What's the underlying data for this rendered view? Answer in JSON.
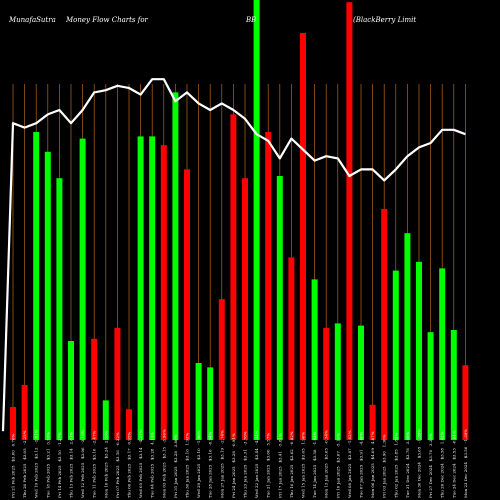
{
  "header": {
    "site": "MunafaSutra",
    "title": "Money Flow  Charts for",
    "symbol": "BB",
    "company": "(BlackBerry Limit"
  },
  "colors": {
    "background": "#000000",
    "up": "#00ff00",
    "down": "#ff0000",
    "line": "#ffffff",
    "grid": "#b5651d"
  },
  "chart_data": {
    "type": "bar",
    "title": "MunafaSutra  Money Flow  Charts for BB (BlackBerry Limit",
    "ylim": [
      0,
      100
    ],
    "grid": true,
    "categories": [
      "Fri 21 Feb 2025   $3.00   0.76%",
      "Thu 20 Feb 2025   $3.05   -2.25%",
      "Wed 19 Feb 2025   $3.12   -2.81%",
      "Tue 18 Feb 2025   $3.21   3.55%",
      "Fri 14 Feb 2025   $3.10   -1.27%",
      "Thu 13 Feb 2025   $3.14   2.61%",
      "Wed 12 Feb 2025   $3.06   -3.16%",
      "Tue 11 Feb 2025   $3.16   -2.47%",
      "Mon 10 Feb 2025   $3.24   2.53%",
      "Fri 07 Feb 2025   $3.16   -0.32%",
      "Thu 06 Feb 2025   $3.17   0.95%",
      "Wed 05 Feb 2025   $3.14   -4.27%",
      "Tue 04 Feb 2025   $3.28   4.13%",
      "Mon 03 Feb 2025   $3.15   -3.96%",
      "Fri 31 Jan 2025   $3.28   3.80%",
      "Thu 30 Jan 2025   $3.16   1.93%",
      "Wed 29 Jan 2025   $3.10   -1.90%",
      "Tue 28 Jan 2025   $3.16   -0.94%",
      "Mon 27 Jan 2025   $3.19   -2.74%",
      "Fri 24 Jan 2025   $3.28   -0.91%",
      "Thu 23 Jan 2025   $3.31   -3.78%",
      "Wed 22 Jan 2025   $3.44   -4.44%",
      "Tue 21 Jan 2025   $3.60   5.57%",
      "Fri 17 Jan 2025   $3.41   -5.81%",
      "Thu 16 Jan 2025   $3.62   -0.82%",
      "Wed 15 Jan 2025   $3.65   1.96%",
      "Tue 14 Jan 2025   $3.58   -1.92%",
      "Mon 13 Jan 2025   $3.65   -0.54%",
      "Fri 10 Jan 2025   $3.67   -5.16%",
      "Wed 08 Jan 2025   $3.87   -1.02%",
      "Tue 07 Jan 2025   $3.91   -4.40%",
      "Mon 06 Jan 2025   $4.09   4.87%",
      "Fri 03 Jan 2025   $3.90   1.30%",
      "Thu 02 Jan 2025   $3.85   1.85%",
      "Tue 31 Dec 2024   $3.78   3.56%",
      "Mon 30 Dec 2024   $3.65   -1.35%",
      "Fri 27 Dec 2024   $3.70   3.35%",
      "Thu 26 Dec 2024   $3.58   1.42%",
      "Tue 24 Dec 2024   $3.53   -0.84%",
      "Mon 23 Dec 2024   $3.56   -1.39%"
    ],
    "series": [
      {
        "values": [
          7.5,
          12.5,
          70.0,
          65.5,
          59.5,
          22.5,
          68.5,
          23.0,
          9.0,
          25.5,
          7.0,
          69.0,
          69.0,
          67.0,
          79.0,
          61.5,
          17.5,
          16.5,
          32.0,
          74.0,
          59.5,
          100.0,
          70.0,
          60.0,
          41.5,
          92.5,
          36.5,
          25.5,
          26.5,
          99.5,
          26.0,
          8.0,
          52.5,
          38.5,
          47.0,
          40.5,
          24.5,
          39.0,
          25.0,
          17.0
        ],
        "directions": [
          "down",
          "down",
          "up",
          "up",
          "up",
          "up",
          "up",
          "down",
          "up",
          "down",
          "down",
          "up",
          "up",
          "down",
          "up",
          "down",
          "up",
          "up",
          "down",
          "down",
          "down",
          "up",
          "down",
          "up",
          "down",
          "down",
          "up",
          "down",
          "up",
          "down",
          "up",
          "down",
          "down",
          "up",
          "up",
          "up",
          "up",
          "up",
          "up",
          "down"
        ]
      },
      {
        "values": [
          72.0,
          71.0,
          72.0,
          74.0,
          75.0,
          72.0,
          75.0,
          79.0,
          79.5,
          80.5,
          80.0,
          78.5,
          82.0,
          82.0,
          77.0,
          79.0,
          76.5,
          75.0,
          76.5,
          75.0,
          73.0,
          69.5,
          68.0,
          64.0,
          68.5,
          66.0,
          63.5,
          64.5,
          64.0,
          60.0,
          61.5,
          61.5,
          59.0,
          61.5,
          64.5,
          66.5,
          67.5,
          70.5,
          70.5,
          69.5
        ],
        "start_value": 2.0
      }
    ]
  }
}
